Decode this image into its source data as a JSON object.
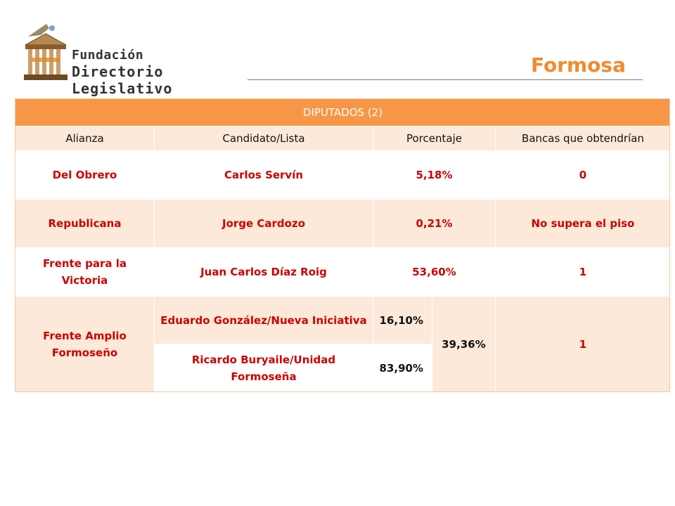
{
  "logo": {
    "line1": "Fundación",
    "line2": "Directorio Legislativo"
  },
  "region": "Formosa",
  "table": {
    "title": "DIPUTADOS (2)",
    "headers": [
      "Alianza",
      "Candidato/Lista",
      "Porcentaje",
      "Bancas que obtendrían"
    ],
    "rows": [
      {
        "alianza": "Del Obrero",
        "candidato": "Carlos Servín",
        "porcentaje": "5,18%",
        "bancas": "0"
      },
      {
        "alianza": "Republicana",
        "candidato": "Jorge Cardozo",
        "porcentaje": "0,21%",
        "bancas": "No supera el piso"
      },
      {
        "alianza": "Frente para la Victoria",
        "candidato": "Juan Carlos Díaz Roig",
        "porcentaje": "53,60%",
        "bancas": "1"
      }
    ],
    "group": {
      "alianza": "Frente Amplio Formoseño",
      "sublists": [
        {
          "candidato": "Eduardo González/Nueva Iniciativa",
          "porcentaje": "16,10%"
        },
        {
          "candidato": "Ricardo Buryaile/Unidad Formoseña",
          "porcentaje": "83,90%"
        }
      ],
      "porcentaje": "39,36%",
      "bancas": "1"
    }
  }
}
